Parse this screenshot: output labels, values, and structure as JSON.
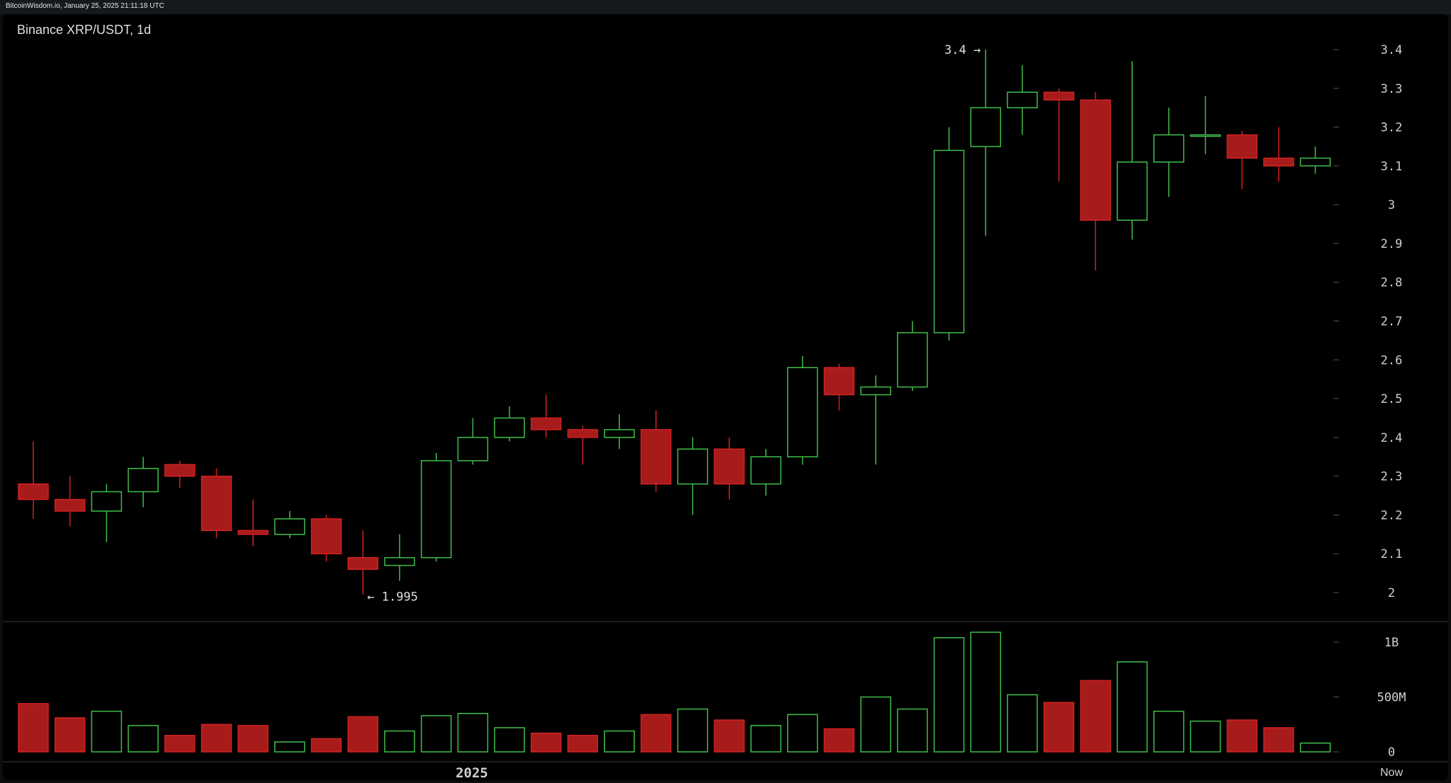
{
  "watermark": "BitcoinWisdom.io, January 25, 2025 21:11:18 UTC",
  "chart_title": "Binance XRP/USDT, 1d",
  "annotations": {
    "high": "3.4 →",
    "low": "← 1.995"
  },
  "colors": {
    "up": "#3fbf4a",
    "down": "#a81b1b",
    "down_edge": "#d02222",
    "axis_text": "#d0d0d0",
    "tick": "#555555"
  },
  "chart_data": {
    "type": "candlestick",
    "title": "Binance XRP/USDT, 1d",
    "grid": false,
    "price_axis": {
      "ylim": [
        1.95,
        3.45
      ],
      "ticks": [
        2,
        2.1,
        2.2,
        2.3,
        2.4,
        2.5,
        2.6,
        2.7,
        2.8,
        2.9,
        3,
        3.1,
        3.2,
        3.3,
        3.4
      ],
      "tick_labels": [
        "2",
        "2.1",
        "2.2",
        "2.3",
        "2.4",
        "2.5",
        "2.6",
        "2.7",
        "2.8",
        "2.9",
        "3",
        "3.1",
        "3.2",
        "3.3",
        "3.4"
      ]
    },
    "volume_axis": {
      "ylim": [
        0,
        1100000000
      ],
      "ticks": [
        0,
        500000000,
        1000000000
      ],
      "tick_labels": [
        "0",
        "500M",
        "1B"
      ]
    },
    "x_axis": {
      "labels": [
        "2025",
        "Now"
      ],
      "label_candle_index": [
        12,
        37
      ]
    },
    "candles": [
      {
        "o": 2.28,
        "h": 2.39,
        "l": 2.19,
        "c": 2.24,
        "v": 440000000
      },
      {
        "o": 2.24,
        "h": 2.3,
        "l": 2.17,
        "c": 2.21,
        "v": 310000000
      },
      {
        "o": 2.21,
        "h": 2.28,
        "l": 2.13,
        "c": 2.26,
        "v": 370000000
      },
      {
        "o": 2.26,
        "h": 2.35,
        "l": 2.22,
        "c": 2.32,
        "v": 240000000
      },
      {
        "o": 2.33,
        "h": 2.34,
        "l": 2.27,
        "c": 2.3,
        "v": 150000000
      },
      {
        "o": 2.3,
        "h": 2.32,
        "l": 2.14,
        "c": 2.16,
        "v": 250000000
      },
      {
        "o": 2.16,
        "h": 2.24,
        "l": 2.12,
        "c": 2.15,
        "v": 240000000
      },
      {
        "o": 2.15,
        "h": 2.21,
        "l": 2.14,
        "c": 2.19,
        "v": 90000000
      },
      {
        "o": 2.19,
        "h": 2.2,
        "l": 2.08,
        "c": 2.1,
        "v": 120000000
      },
      {
        "o": 2.09,
        "h": 2.16,
        "l": 1.995,
        "c": 2.06,
        "v": 320000000
      },
      {
        "o": 2.07,
        "h": 2.15,
        "l": 2.03,
        "c": 2.09,
        "v": 190000000
      },
      {
        "o": 2.09,
        "h": 2.36,
        "l": 2.08,
        "c": 2.34,
        "v": 330000000
      },
      {
        "o": 2.34,
        "h": 2.45,
        "l": 2.33,
        "c": 2.4,
        "v": 350000000
      },
      {
        "o": 2.4,
        "h": 2.48,
        "l": 2.39,
        "c": 2.45,
        "v": 220000000
      },
      {
        "o": 2.45,
        "h": 2.51,
        "l": 2.4,
        "c": 2.42,
        "v": 170000000
      },
      {
        "o": 2.42,
        "h": 2.43,
        "l": 2.33,
        "c": 2.4,
        "v": 150000000
      },
      {
        "o": 2.4,
        "h": 2.46,
        "l": 2.37,
        "c": 2.42,
        "v": 190000000
      },
      {
        "o": 2.42,
        "h": 2.47,
        "l": 2.26,
        "c": 2.28,
        "v": 340000000
      },
      {
        "o": 2.28,
        "h": 2.4,
        "l": 2.2,
        "c": 2.37,
        "v": 390000000
      },
      {
        "o": 2.37,
        "h": 2.4,
        "l": 2.24,
        "c": 2.28,
        "v": 290000000
      },
      {
        "o": 2.28,
        "h": 2.37,
        "l": 2.25,
        "c": 2.35,
        "v": 240000000
      },
      {
        "o": 2.35,
        "h": 2.61,
        "l": 2.33,
        "c": 2.58,
        "v": 340000000
      },
      {
        "o": 2.58,
        "h": 2.59,
        "l": 2.47,
        "c": 2.51,
        "v": 210000000
      },
      {
        "o": 2.51,
        "h": 2.56,
        "l": 2.33,
        "c": 2.53,
        "v": 500000000
      },
      {
        "o": 2.53,
        "h": 2.7,
        "l": 2.52,
        "c": 2.67,
        "v": 390000000
      },
      {
        "o": 2.67,
        "h": 3.2,
        "l": 2.65,
        "c": 3.14,
        "v": 1040000000
      },
      {
        "o": 3.15,
        "h": 3.4,
        "l": 2.92,
        "c": 3.25,
        "v": 1090000000
      },
      {
        "o": 3.25,
        "h": 3.36,
        "l": 3.18,
        "c": 3.29,
        "v": 520000000
      },
      {
        "o": 3.29,
        "h": 3.3,
        "l": 3.06,
        "c": 3.27,
        "v": 450000000
      },
      {
        "o": 3.27,
        "h": 3.29,
        "l": 2.83,
        "c": 2.96,
        "v": 650000000
      },
      {
        "o": 2.96,
        "h": 3.37,
        "l": 2.91,
        "c": 3.11,
        "v": 820000000
      },
      {
        "o": 3.11,
        "h": 3.25,
        "l": 3.02,
        "c": 3.18,
        "v": 370000000
      },
      {
        "o": 3.18,
        "h": 3.28,
        "l": 3.13,
        "c": 3.18,
        "v": 280000000
      },
      {
        "o": 3.18,
        "h": 3.19,
        "l": 3.04,
        "c": 3.12,
        "v": 290000000
      },
      {
        "o": 3.12,
        "h": 3.2,
        "l": 3.06,
        "c": 3.1,
        "v": 220000000
      },
      {
        "o": 3.1,
        "h": 3.15,
        "l": 3.08,
        "c": 3.12,
        "v": 80000000
      }
    ],
    "high_annotation": {
      "candle_index": 26,
      "value": 3.4
    },
    "low_annotation": {
      "candle_index": 9,
      "value": 1.995
    }
  }
}
